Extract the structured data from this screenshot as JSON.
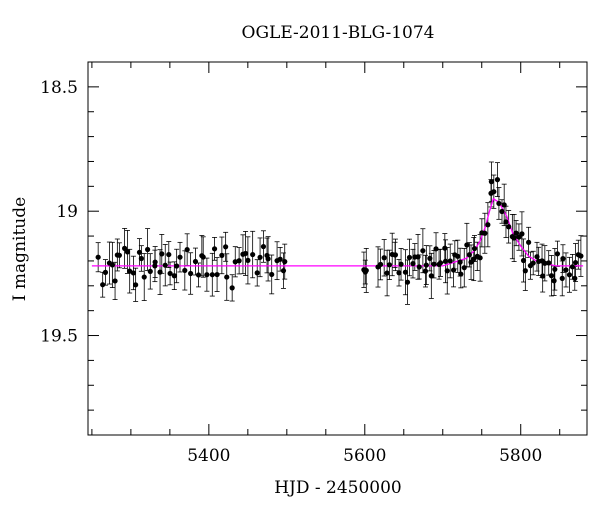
{
  "chart_data": {
    "type": "scatter",
    "title": "OGLE-2011-BLG-1074",
    "xlabel": "HJD - 2450000",
    "ylabel": "I magnitude",
    "xlim": [
      5245,
      5885
    ],
    "ylim": [
      19.9,
      18.4
    ],
    "y_inverted": true,
    "x_major_ticks": [
      5400,
      5600,
      5800
    ],
    "x_tick_labels": [
      "5400",
      "5600",
      "5800"
    ],
    "x_minor_step": 50,
    "y_major_ticks": [
      18.5,
      19,
      19.5
    ],
    "y_tick_labels": [
      "18.5",
      "19",
      "19.5"
    ],
    "y_minor_step": 0.1,
    "grid": false,
    "colors": {
      "points": "#000000",
      "model": "#ff00ff"
    },
    "baseline_magnitude": 19.22,
    "peak_magnitude": 18.95,
    "peak_hjd": 5765,
    "model_curve": {
      "x": [
        5250,
        5600,
        5700,
        5710,
        5720,
        5730,
        5740,
        5748,
        5755,
        5760,
        5765,
        5770,
        5775,
        5782,
        5790,
        5800,
        5810,
        5820,
        5830,
        5845,
        5880
      ],
      "y": [
        19.22,
        19.22,
        19.22,
        19.21,
        19.2,
        19.19,
        19.16,
        19.12,
        19.06,
        19.0,
        18.95,
        18.96,
        18.98,
        19.02,
        19.09,
        19.14,
        19.18,
        19.2,
        19.21,
        19.22,
        19.22
      ]
    },
    "observation_epochs": [
      [
        5258,
        5300,
        11
      ],
      [
        5300,
        5350,
        13
      ],
      [
        5350,
        5400,
        12
      ],
      [
        5400,
        5450,
        11
      ],
      [
        5450,
        5500,
        12
      ],
      [
        5598,
        5603,
        3
      ],
      [
        5615,
        5660,
        13
      ],
      [
        5660,
        5700,
        13
      ],
      [
        5700,
        5740,
        14
      ],
      [
        5740,
        5790,
        16
      ],
      [
        5790,
        5840,
        16
      ],
      [
        5840,
        5880,
        12
      ]
    ]
  }
}
